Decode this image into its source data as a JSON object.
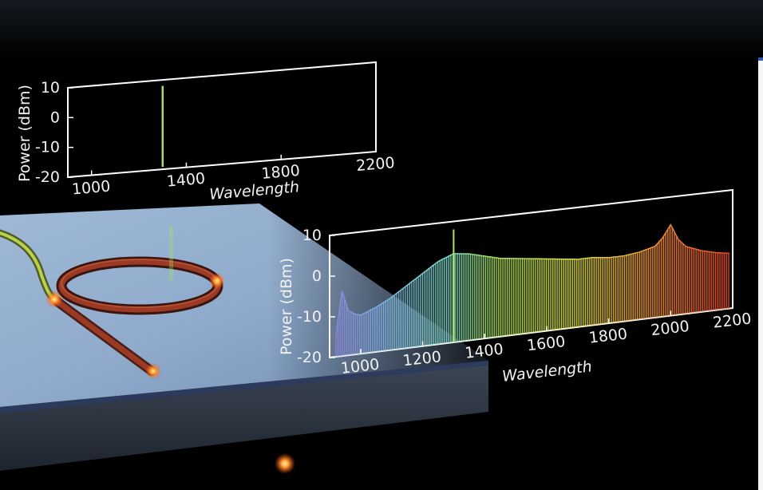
{
  "chart_data": [
    {
      "type": "line",
      "xlabel": "Wavelength",
      "ylabel": "Power (dBm)",
      "xticks": [
        1000,
        1400,
        1800,
        2200
      ],
      "yticks": [
        10,
        0,
        -10,
        -20
      ],
      "ylim": [
        -20,
        10
      ],
      "xlim": [
        900,
        2200
      ],
      "series": [
        {
          "x": [
            1300
          ],
          "y": [
            8
          ]
        }
      ]
    },
    {
      "type": "line",
      "xlabel": "Wavelength",
      "ylabel": "Power (dBm)",
      "xticks": [
        1000,
        1200,
        1400,
        1600,
        1800,
        2000,
        2200
      ],
      "yticks": [
        10,
        0,
        -10,
        -20
      ],
      "ylim": [
        -20,
        10
      ],
      "xlim": [
        900,
        2200
      ],
      "pump": {
        "x": 1300,
        "y": 8
      },
      "series": [
        {
          "x": [
            920,
            940,
            960,
            980,
            1000,
            1050,
            1100,
            1150,
            1200,
            1250,
            1300,
            1350,
            1400,
            1450,
            1500,
            1550,
            1600,
            1650,
            1700,
            1750,
            1800,
            1850,
            1900,
            1950,
            1975,
            2000,
            2025,
            2050,
            2100,
            2150,
            2190
          ],
          "y": [
            -15,
            -4,
            -9,
            -10,
            -10.5,
            -9,
            -7,
            -4.5,
            -2,
            0.5,
            2,
            1.5,
            0.5,
            -0.5,
            -1,
            -1.5,
            -2,
            -2.5,
            -3,
            -3,
            -3.5,
            -3.5,
            -3,
            -2,
            0,
            3,
            -1,
            -3,
            -4.5,
            -5.5,
            -6
          ]
        }
      ]
    }
  ]
}
